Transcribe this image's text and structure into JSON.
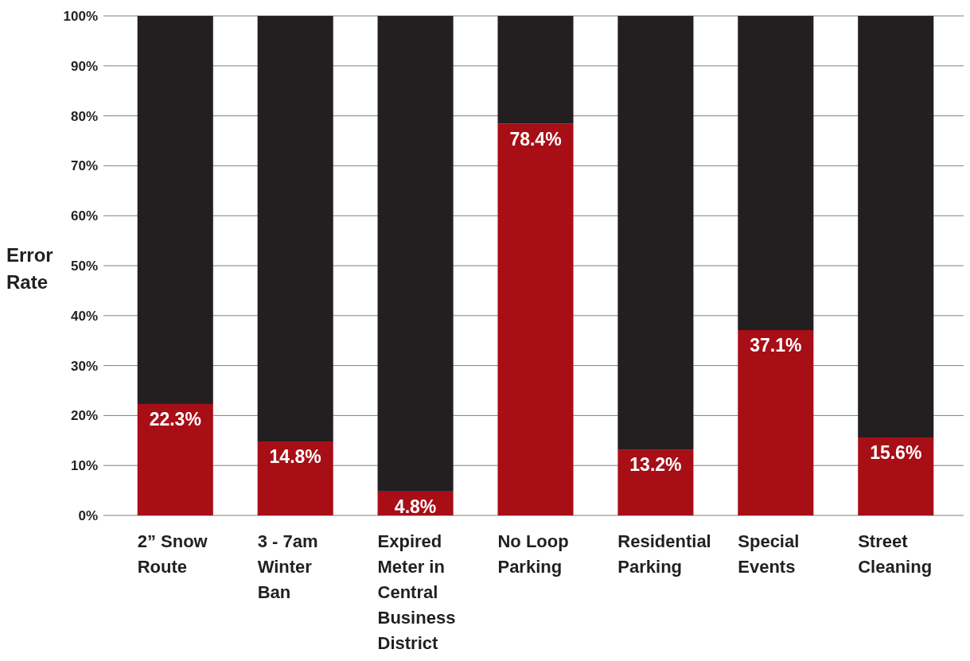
{
  "chart_data": {
    "type": "bar",
    "stacked": true,
    "ylabel": "Error Rate",
    "categories": [
      "2” Snow Route",
      "3 - 7am Winter Ban",
      "Expired Meter in Central Business District",
      "No Loop Parking",
      "Residential Parking",
      "Special Events",
      "Street Cleaning"
    ],
    "series": [
      {
        "color": "#a70e16",
        "values": [
          22.3,
          14.8,
          4.8,
          78.4,
          13.2,
          37.1,
          15.6
        ],
        "value_labels": [
          "22.3%",
          "14.8%",
          "4.8%",
          "78.4%",
          "13.2%",
          "37.1%",
          "15.6%"
        ]
      },
      {
        "color": "#231f20",
        "values": [
          77.7,
          85.2,
          95.2,
          21.6,
          86.8,
          62.9,
          84.4
        ]
      }
    ],
    "ylim": [
      0,
      100
    ],
    "yticks": [
      {
        "value": 0,
        "label": "0%"
      },
      {
        "value": 10,
        "label": "10%"
      },
      {
        "value": 20,
        "label": "20%"
      },
      {
        "value": 30,
        "label": "30%"
      },
      {
        "value": 40,
        "label": "40%"
      },
      {
        "value": 50,
        "label": "50%"
      },
      {
        "value": 60,
        "label": "60%"
      },
      {
        "value": 70,
        "label": "70%"
      },
      {
        "value": 80,
        "label": "80%"
      },
      {
        "value": 90,
        "label": "90%"
      },
      {
        "value": 100,
        "label": "100%"
      }
    ],
    "grid": "y"
  }
}
